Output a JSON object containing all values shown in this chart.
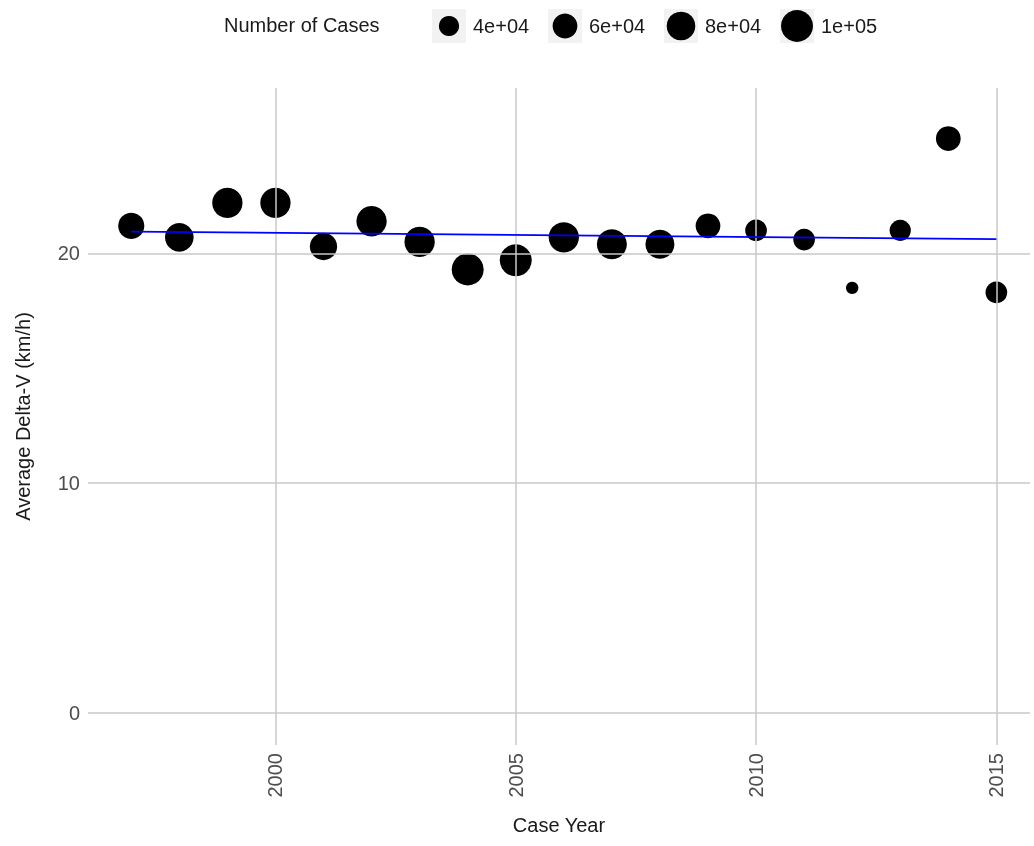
{
  "chart_data": {
    "type": "bubble",
    "xlabel": "Case Year",
    "ylabel": "Average Delta-V (km/h)",
    "legend_title": "Number of Cases",
    "xlim": [
      1996.1,
      2015.7
    ],
    "xticks": [
      2000,
      2005,
      2010,
      2015
    ],
    "ylim": [
      -1.4,
      27.2
    ],
    "yticks": [
      0,
      10,
      20
    ],
    "grid": true,
    "size_legend": [
      {
        "value": 40000,
        "label": "4e+04"
      },
      {
        "value": 60000,
        "label": "6e+04"
      },
      {
        "value": 80000,
        "label": "8e+04"
      },
      {
        "value": 100000,
        "label": "1e+05"
      }
    ],
    "series": [
      {
        "marker": "circle",
        "color": "#000000",
        "x": [
          1997,
          1998,
          1999,
          2000,
          2001,
          2002,
          2003,
          2004,
          2005,
          2006,
          2007,
          2008,
          2009,
          2010,
          2011,
          2012,
          2013,
          2014,
          2015
        ],
        "values": [
          21.2,
          20.7,
          22.2,
          22.2,
          20.3,
          21.4,
          20.5,
          19.3,
          19.7,
          20.7,
          20.4,
          20.4,
          21.2,
          21.0,
          20.6,
          18.5,
          21.0,
          25.0,
          18.3
        ],
        "sizes": [
          67000,
          80000,
          90000,
          90000,
          73000,
          90000,
          90000,
          100000,
          100000,
          90000,
          88000,
          82000,
          60000,
          46000,
          46000,
          15000,
          44000,
          60000,
          46000
        ]
      },
      {
        "type": "line",
        "color": "#0000ff",
        "x": [
          1997,
          2015
        ],
        "values": [
          20.95,
          20.62
        ]
      }
    ]
  }
}
